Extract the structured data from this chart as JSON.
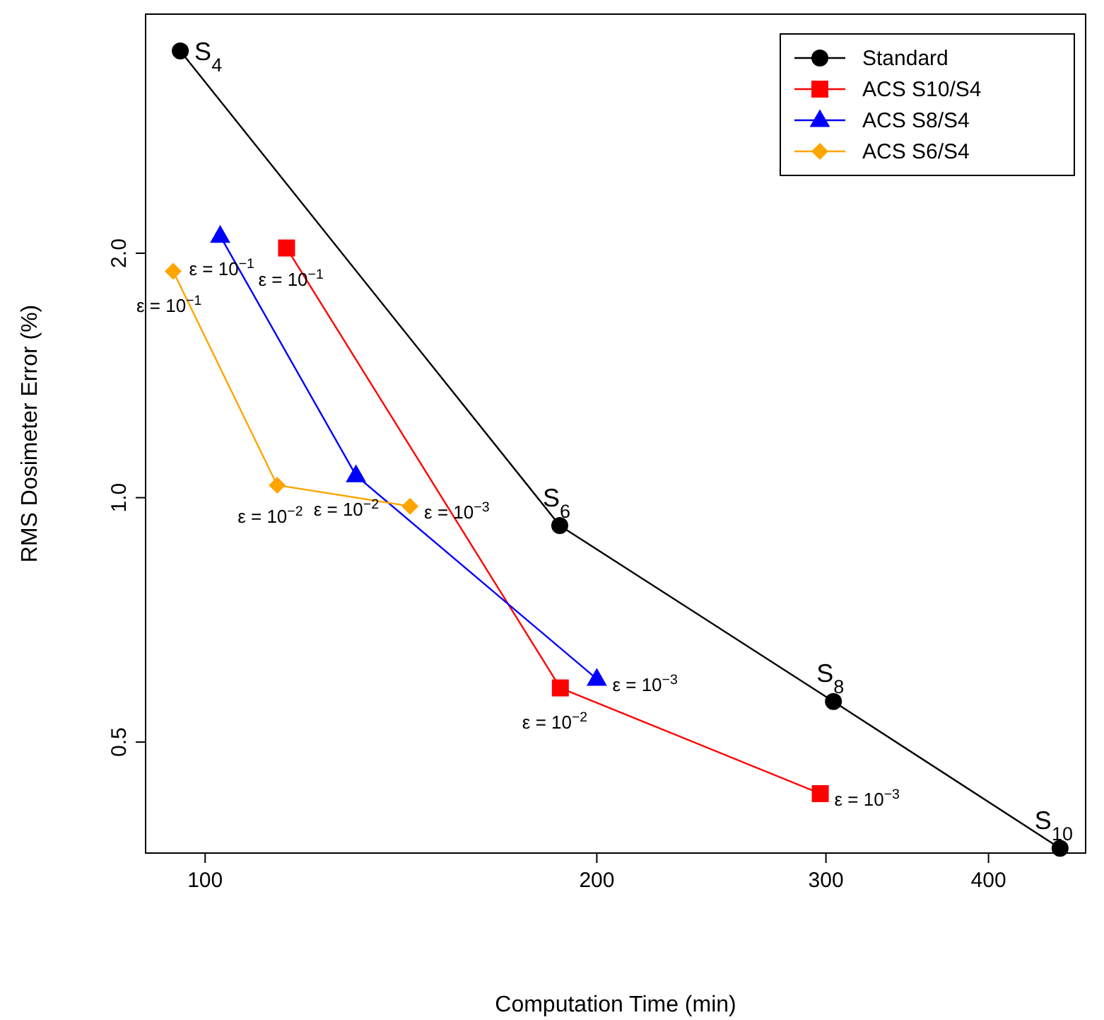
{
  "chart_data": {
    "type": "line",
    "xlabel": "Computation Time (min)",
    "ylabel": "RMS Dosimeter Error (%)",
    "log": "xy",
    "xlim": [
      90,
      475
    ],
    "ylim": [
      0.365,
      3.94
    ],
    "xticks": [
      100,
      200,
      300,
      400
    ],
    "yticks": [
      0.5,
      {
        "value": 1,
        "label": "1.0"
      },
      {
        "value": 2,
        "label": "2.0"
      }
    ],
    "legend": "top right",
    "grid": false,
    "series": [
      {
        "name": "Standard",
        "color": "#000000",
        "marker": "circle",
        "x": [
          95.7,
          187.3,
          304,
          454
        ],
        "values": [
          3.55,
          0.924,
          0.561,
          0.37
        ]
      },
      {
        "name": "ACS S10/S4",
        "color": "#ff0000",
        "marker": "square",
        "x": [
          115.5,
          187.5,
          297
        ],
        "values": [
          2.03,
          0.583,
          0.432
        ]
      },
      {
        "name": "ACS S8/S4",
        "color": "#0000ff",
        "marker": "triangle",
        "x": [
          102.7,
          130.6,
          200
        ],
        "values": [
          2.1,
          1.065,
          0.598
        ]
      },
      {
        "name": "ACS S6/S4",
        "color": "#ffa500",
        "marker": "diamond",
        "x": [
          94.5,
          113.6,
          143.7
        ],
        "values": [
          1.9,
          1.036,
          0.976
        ]
      }
    ],
    "annotations": [
      {
        "text": "S$_{4}$",
        "x": 95.7,
        "y": 3.55
      },
      {
        "text": "S$_{6}$",
        "x": 187.3,
        "y": 0.924
      },
      {
        "text": "S$_{8}$",
        "x": 304,
        "y": 0.561
      },
      {
        "text": "S$_{10}$",
        "x": 454,
        "y": 0.37
      },
      {
        "text": "ε = 10$^{−1}$",
        "x": 115.5,
        "y": 2.03
      },
      {
        "text": "ε = 10$^{−2}$",
        "x": 187.5,
        "y": 0.583
      },
      {
        "text": "ε = 10$^{−3}$",
        "x": 297,
        "y": 0.432
      },
      {
        "text": "ε = 10$^{−1}$",
        "x": 102.7,
        "y": 2.1
      },
      {
        "text": "ε = 10$^{−2}$",
        "x": 130.6,
        "y": 1.065
      },
      {
        "text": "ε = 10$^{−3}$",
        "x": 200,
        "y": 0.598
      },
      {
        "text": "ε = 10$^{−1}$",
        "x": 94.5,
        "y": 1.9
      },
      {
        "text": "ε = 10$^{−2}$",
        "x": 113.6,
        "y": 1.036
      },
      {
        "text": "ε = 10$^{−3}$",
        "x": 143.7,
        "y": 0.976
      }
    ]
  }
}
